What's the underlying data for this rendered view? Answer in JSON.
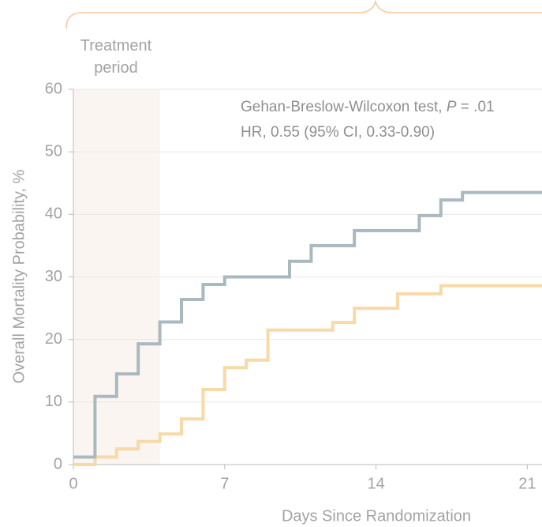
{
  "chart_data": {
    "type": "step",
    "xlabel": "Days Since Randomization",
    "ylabel": "Overall Mortality Probability, %",
    "xlim": [
      0,
      21.7
    ],
    "ylim": [
      0,
      60
    ],
    "xticks": [
      0,
      7,
      14,
      21
    ],
    "yticks": [
      0,
      10,
      20,
      30,
      40,
      50,
      60
    ],
    "grid": true,
    "shaded_region": {
      "x": [
        0,
        4
      ],
      "label": "Treatment period",
      "color": "#faf5f0"
    },
    "annotation_1": [
      "Gehan-Breslow-Wilcoxon test, ",
      "P",
      " = .01"
    ],
    "annotation_2": "HR, 0.55 (95% CI, 0.33-0.90)",
    "series": [
      {
        "color": "#a9b9bf",
        "x": [
          0,
          1,
          2,
          3,
          4,
          5,
          6,
          7,
          10,
          11,
          13,
          16,
          17,
          18
        ],
        "values": [
          1.2,
          10.9,
          14.5,
          19.3,
          22.8,
          26.4,
          28.8,
          30,
          32.5,
          35,
          37.4,
          39.8,
          42.3,
          43.5
        ]
      },
      {
        "color": "#f8d9a8",
        "x": [
          0,
          1,
          2,
          3,
          4,
          5,
          6,
          7,
          8,
          9,
          12,
          13,
          15,
          17
        ],
        "values": [
          0,
          1.2,
          2.5,
          3.7,
          4.9,
          7.3,
          12,
          15.5,
          16.7,
          21.5,
          22.7,
          25,
          27.3,
          28.6
        ]
      }
    ]
  }
}
